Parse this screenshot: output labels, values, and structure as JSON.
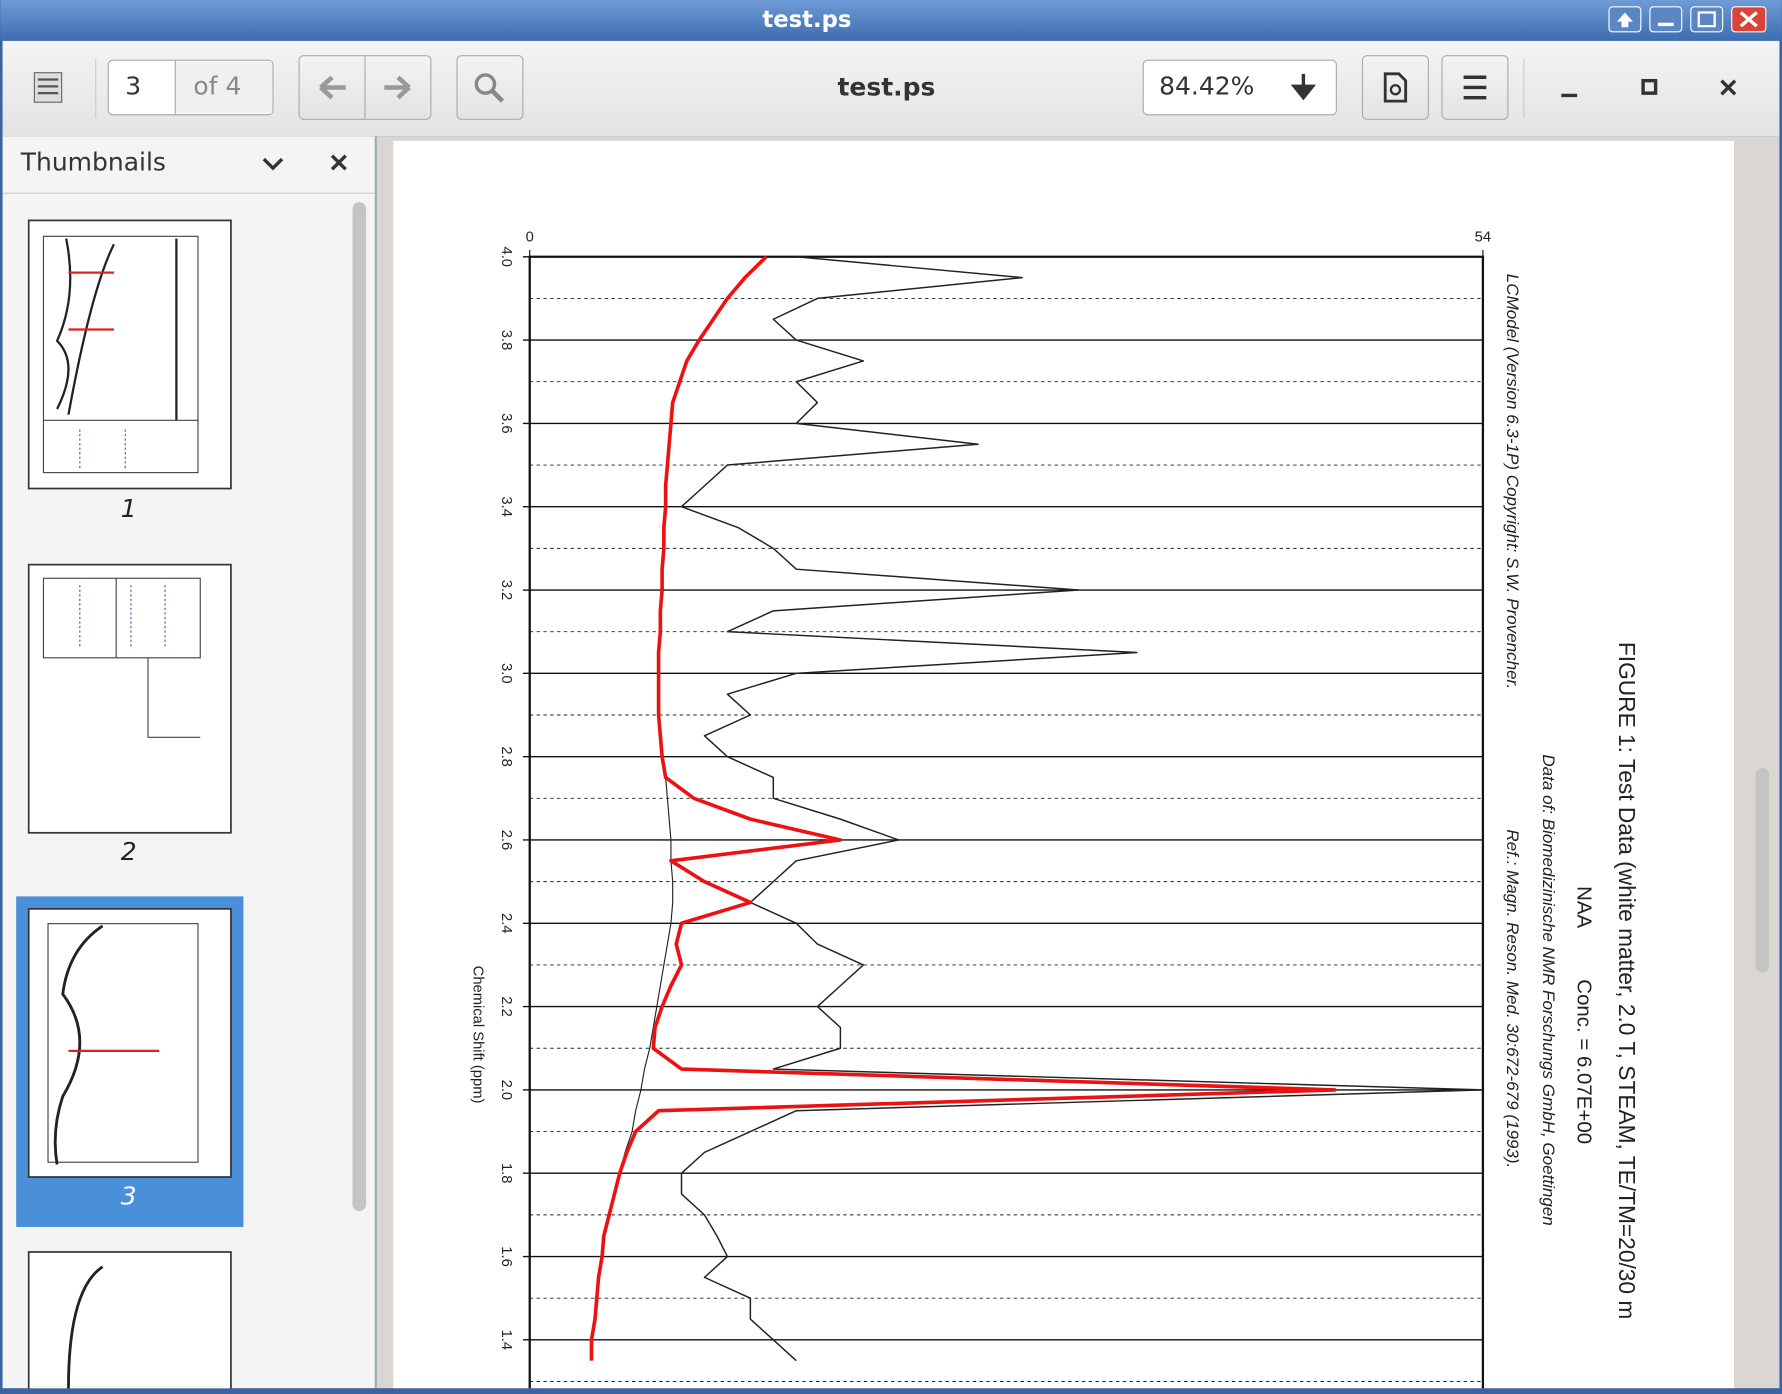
{
  "window": {
    "title": "test.ps"
  },
  "toolbar": {
    "page_number": "3",
    "page_count": "of 4",
    "document_title": "test.ps",
    "zoom": "84.42%"
  },
  "sidebar": {
    "title": "Thumbnails",
    "thumbnails": [
      "1",
      "2",
      "3"
    ]
  },
  "document": {
    "chart_data": {
      "type": "line",
      "title": "FIGURE 1:  Test Data (white matter, 2.0 T, STEAM, TE/TM=20/30 m",
      "annotations": [
        "NAA",
        "Conc. = 6.07E+00",
        "LCModel (Version 6.3-1P) Copyright: S.W. Provencher.",
        "Data of: Biomedizinische NMR Forschungs GmbH, Goettingen",
        "Ref.: Magn. Reson. Med. 30:672-679 (1993)."
      ],
      "xlabel": "Chemical Shift (ppm)",
      "xlim": [
        4.0,
        1.3
      ],
      "xticks": [
        {
          "value": 4.0,
          "label": "4.0"
        },
        3.8,
        3.6,
        3.4,
        3.2,
        {
          "value": 3.0,
          "label": "3.0"
        },
        2.8,
        2.6,
        2.4,
        2.2,
        {
          "value": 2.0,
          "label": "2.0"
        },
        1.8,
        1.6,
        1.4
      ],
      "x_minor_ticks": [
        3.9,
        3.7,
        3.5,
        3.3,
        3.1,
        2.9,
        2.7,
        2.5,
        2.3,
        2.1,
        1.9,
        1.7,
        1.5,
        1.3
      ],
      "ylim": [
        0,
        54
      ],
      "yticks": [
        0,
        54
      ],
      "grid": true,
      "x": [
        4.0,
        3.95,
        3.9,
        3.85,
        3.8,
        3.75,
        3.7,
        3.65,
        3.6,
        3.55,
        3.5,
        3.45,
        3.4,
        3.35,
        3.3,
        3.25,
        3.2,
        3.15,
        3.1,
        3.05,
        3.0,
        2.95,
        2.9,
        2.85,
        2.8,
        2.75,
        2.7,
        2.65,
        2.6,
        2.55,
        2.5,
        2.45,
        2.4,
        2.35,
        2.3,
        2.25,
        2.2,
        2.15,
        2.1,
        2.05,
        2.0,
        1.95,
        1.9,
        1.85,
        1.8,
        1.75,
        1.7,
        1.65,
        1.6,
        1.55,
        1.5,
        1.45,
        1.4,
        1.35
      ],
      "series": [
        {
          "color": "#222222",
          "width": 1.3,
          "values": [
            15.1,
            27.9,
            16.3,
            13.8,
            15.1,
            18.9,
            15.1,
            16.3,
            15.1,
            25.4,
            11.2,
            9.9,
            8.6,
            11.8,
            13.8,
            15.1,
            31.1,
            13.8,
            11.2,
            34.4,
            15.1,
            11.2,
            12.5,
            9.9,
            11.2,
            13.8,
            13.8,
            17.6,
            20.9,
            15.1,
            13.8,
            12.5,
            15.1,
            16.3,
            18.9,
            17.6,
            16.3,
            17.6,
            17.6,
            13.8,
            54,
            15.1,
            12.5,
            9.9,
            8.6,
            8.6,
            9.9,
            10.6,
            11.2,
            9.9,
            12.5,
            12.5,
            13.8,
            15.1
          ]
        },
        {
          "color": "#222222",
          "width": 1,
          "values": [
            13.4,
            12.2,
            11.2,
            10.4,
            9.6,
            8.9,
            8.5,
            8.1,
            8.0,
            7.9,
            7.8,
            7.7,
            7.7,
            7.6,
            7.6,
            7.5,
            7.5,
            7.4,
            7.4,
            7.3,
            7.3,
            7.3,
            7.3,
            7.4,
            7.5,
            7.7,
            7.8,
            7.9,
            8.0,
            8.0,
            8.1,
            8.1,
            8.0,
            7.8,
            7.6,
            7.4,
            7.2,
            7.0,
            6.8,
            6.5,
            6.3,
            6.0,
            5.8,
            5.4,
            5.1,
            4.8,
            4.5,
            4.2,
            4.1,
            3.9,
            3.8,
            3.7,
            3.5,
            3.5
          ]
        },
        {
          "color": "#ee1111",
          "width": 3.2,
          "values": [
            13.4,
            12.2,
            11.2,
            10.4,
            9.6,
            8.9,
            8.5,
            8.1,
            8.0,
            7.9,
            7.8,
            7.7,
            7.7,
            7.6,
            7.6,
            7.5,
            7.5,
            7.4,
            7.4,
            7.3,
            7.3,
            7.3,
            7.3,
            7.4,
            7.5,
            7.7,
            9.3,
            12.5,
            17.6,
            8.0,
            9.9,
            12.5,
            8.6,
            8.3,
            8.6,
            8.0,
            7.5,
            7.1,
            7.0,
            8.6,
            45.6,
            7.3,
            6.0,
            5.5,
            5.1,
            4.8,
            4.5,
            4.2,
            4.1,
            3.9,
            3.8,
            3.7,
            3.5,
            3.5
          ]
        }
      ]
    }
  }
}
